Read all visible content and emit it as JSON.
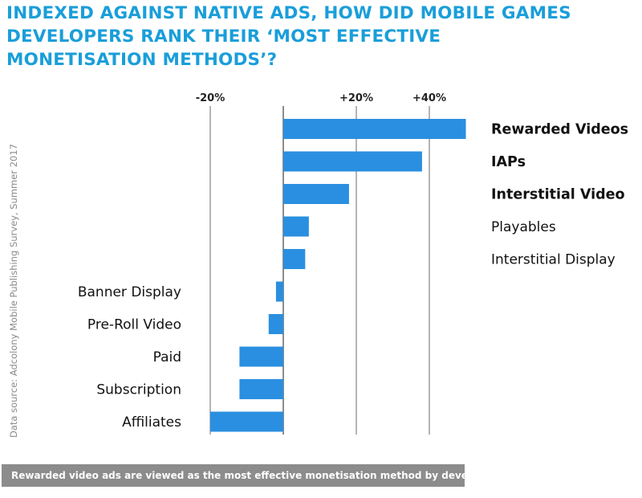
{
  "title_lines": [
    "INDEXED AGAINST NATIVE ADS, HOW DID MOBILE GAMES",
    "DEVELOPERS RANK THEIR ‘MOST EFFECTIVE",
    "MONETISATION METHODS’?"
  ],
  "source": "Data source: Adcolony Mobile Publishing Survey, Summer 2017",
  "caption": "Rewarded video ads are viewed as the most effective monetisation method by developers",
  "colors": {
    "bar": "#2a8fe0",
    "title": "#1a9ed9",
    "grid": "#8c8c8c",
    "caption_bg": "#8c8c8c"
  },
  "chart_data": {
    "type": "bar",
    "orientation": "horizontal",
    "categories": [
      "Rewarded Videos",
      "IAPs",
      "Interstitial Video",
      "Playables",
      "Interstitial Display",
      "Banner Display",
      "Pre-Roll Video",
      "Paid",
      "Subscription",
      "Affiliates"
    ],
    "values": [
      50,
      38,
      18,
      7,
      6,
      -2,
      -4,
      -12,
      -12,
      -20
    ],
    "bold_categories": [
      "Rewarded Videos",
      "IAPs",
      "Interstitial Video"
    ],
    "x_ticks": [
      {
        "value": -20,
        "label": "-20%"
      },
      {
        "value": 20,
        "label": "+20%"
      },
      {
        "value": 40,
        "label": "+40%"
      }
    ],
    "xlim": [
      -20,
      50
    ],
    "gridlines": [
      -20,
      0,
      20,
      40
    ],
    "unit": "%"
  }
}
